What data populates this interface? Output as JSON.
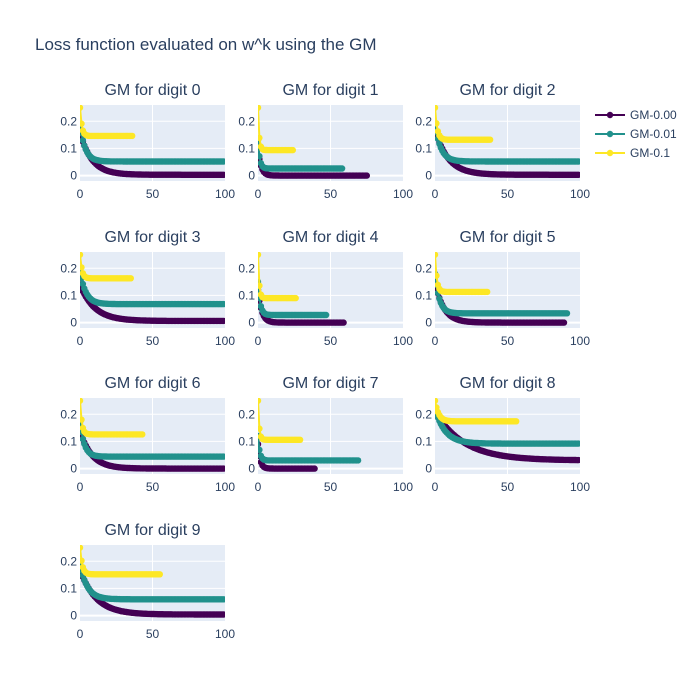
{
  "figure": {
    "title": "Loss function evaluated on w^k using the GM",
    "background": "#ffffff",
    "plot_background": "#e5ecf6",
    "grid_color": "#ffffff",
    "text_color": "#2a3f5f"
  },
  "chart_data": {
    "type": "line",
    "grid": true,
    "legend_position": "top-right",
    "series_styles": [
      {
        "name": "GM-0.00",
        "color": "#440154"
      },
      {
        "name": "GM-0.01",
        "color": "#21918c"
      },
      {
        "name": "GM-0.1",
        "color": "#fde725"
      }
    ],
    "panels": [
      {
        "title": "GM for digit 0",
        "xlim": [
          0,
          100
        ],
        "ylim": [
          -0.02,
          0.26
        ],
        "xticks": [
          0,
          50,
          100
        ],
        "xtick_labels": [
          "0",
          "50",
          "100"
        ],
        "yticks": [
          0,
          0.1,
          0.2
        ],
        "ytick_labels": [
          "0",
          "0.1",
          "0.2"
        ],
        "series": [
          {
            "name": "GM-0.00",
            "iterations": 100,
            "start": 0.16,
            "end": 0.003,
            "tau": 8
          },
          {
            "name": "GM-0.01",
            "iterations": 100,
            "start": 0.19,
            "end": 0.052,
            "tau": 3.5
          },
          {
            "name": "GM-0.1",
            "iterations": 37,
            "start": 0.25,
            "end": 0.146,
            "tau": 1.2
          }
        ]
      },
      {
        "title": "GM for digit 1",
        "xlim": [
          0,
          100
        ],
        "ylim": [
          -0.02,
          0.26
        ],
        "xticks": [
          0,
          50,
          100
        ],
        "xtick_labels": [
          "0",
          "50",
          "100"
        ],
        "yticks": [
          0,
          0.1,
          0.2
        ],
        "ytick_labels": [
          "0",
          "0.1",
          "0.2"
        ],
        "series": [
          {
            "name": "GM-0.00",
            "iterations": 76,
            "start": 0.1,
            "end": 0.0,
            "tau": 2
          },
          {
            "name": "GM-0.01",
            "iterations": 59,
            "start": 0.13,
            "end": 0.026,
            "tau": 1.2
          },
          {
            "name": "GM-0.1",
            "iterations": 25,
            "start": 0.25,
            "end": 0.094,
            "tau": 0.8
          }
        ]
      },
      {
        "title": "GM for digit 2",
        "xlim": [
          0,
          100
        ],
        "ylim": [
          -0.02,
          0.26
        ],
        "xticks": [
          0,
          50,
          100
        ],
        "xtick_labels": [
          "0",
          "50",
          "100"
        ],
        "yticks": [
          0,
          0.1,
          0.2
        ],
        "ytick_labels": [
          "0",
          "0.1",
          "0.2"
        ],
        "series": [
          {
            "name": "GM-0.00",
            "iterations": 100,
            "start": 0.17,
            "end": 0.003,
            "tau": 9
          },
          {
            "name": "GM-0.01",
            "iterations": 100,
            "start": 0.19,
            "end": 0.052,
            "tau": 4
          },
          {
            "name": "GM-0.1",
            "iterations": 39,
            "start": 0.25,
            "end": 0.132,
            "tau": 1.5
          }
        ]
      },
      {
        "title": "GM for digit 3",
        "xlim": [
          0,
          100
        ],
        "ylim": [
          -0.02,
          0.26
        ],
        "xticks": [
          0,
          50,
          100
        ],
        "xtick_labels": [
          "0",
          "50",
          "100"
        ],
        "yticks": [
          0,
          0.1,
          0.2
        ],
        "ytick_labels": [
          "0",
          "0.1",
          "0.2"
        ],
        "series": [
          {
            "name": "GM-0.00",
            "iterations": 100,
            "start": 0.14,
            "end": 0.006,
            "tau": 10
          },
          {
            "name": "GM-0.01",
            "iterations": 100,
            "start": 0.19,
            "end": 0.068,
            "tau": 4
          },
          {
            "name": "GM-0.1",
            "iterations": 36,
            "start": 0.25,
            "end": 0.163,
            "tau": 1.3
          }
        ]
      },
      {
        "title": "GM for digit 4",
        "xlim": [
          0,
          100
        ],
        "ylim": [
          -0.02,
          0.26
        ],
        "xticks": [
          0,
          50,
          100
        ],
        "xtick_labels": [
          "0",
          "50",
          "100"
        ],
        "yticks": [
          0,
          0.1,
          0.2
        ],
        "ytick_labels": [
          "0",
          "0.1",
          "0.2"
        ],
        "series": [
          {
            "name": "GM-0.00",
            "iterations": 60,
            "start": 0.12,
            "end": 0.0,
            "tau": 2.5
          },
          {
            "name": "GM-0.01",
            "iterations": 48,
            "start": 0.15,
            "end": 0.028,
            "tau": 1.5
          },
          {
            "name": "GM-0.1",
            "iterations": 27,
            "start": 0.25,
            "end": 0.09,
            "tau": 0.8
          }
        ]
      },
      {
        "title": "GM for digit 5",
        "xlim": [
          0,
          100
        ],
        "ylim": [
          -0.02,
          0.26
        ],
        "xticks": [
          0,
          50,
          100
        ],
        "xtick_labels": [
          "0",
          "50",
          "100"
        ],
        "yticks": [
          0,
          0.1,
          0.2
        ],
        "ytick_labels": [
          "0",
          "0.1",
          "0.2"
        ],
        "series": [
          {
            "name": "GM-0.00",
            "iterations": 90,
            "start": 0.15,
            "end": 0.0,
            "tau": 6
          },
          {
            "name": "GM-0.01",
            "iterations": 92,
            "start": 0.18,
            "end": 0.034,
            "tau": 3
          },
          {
            "name": "GM-0.1",
            "iterations": 37,
            "start": 0.25,
            "end": 0.113,
            "tau": 1.2
          }
        ]
      },
      {
        "title": "GM for digit 6",
        "xlim": [
          0,
          100
        ],
        "ylim": [
          -0.02,
          0.26
        ],
        "xticks": [
          0,
          50,
          100
        ],
        "xtick_labels": [
          "0",
          "50",
          "100"
        ],
        "yticks": [
          0,
          0.1,
          0.2
        ],
        "ytick_labels": [
          "0",
          "0.1",
          "0.2"
        ],
        "series": [
          {
            "name": "GM-0.00",
            "iterations": 100,
            "start": 0.14,
            "end": 0.0,
            "tau": 8
          },
          {
            "name": "GM-0.01",
            "iterations": 100,
            "start": 0.17,
            "end": 0.044,
            "tau": 3
          },
          {
            "name": "GM-0.1",
            "iterations": 44,
            "start": 0.25,
            "end": 0.126,
            "tau": 1.2
          }
        ]
      },
      {
        "title": "GM for digit 7",
        "xlim": [
          0,
          100
        ],
        "ylim": [
          -0.02,
          0.26
        ],
        "xticks": [
          0,
          50,
          100
        ],
        "xtick_labels": [
          "0",
          "50",
          "100"
        ],
        "yticks": [
          0,
          0.1,
          0.2
        ],
        "ytick_labels": [
          "0",
          "0.1",
          "0.2"
        ],
        "series": [
          {
            "name": "GM-0.00",
            "iterations": 40,
            "start": 0.09,
            "end": 0.0,
            "tau": 1.5
          },
          {
            "name": "GM-0.01",
            "iterations": 70,
            "start": 0.12,
            "end": 0.03,
            "tau": 1.2
          },
          {
            "name": "GM-0.1",
            "iterations": 30,
            "start": 0.25,
            "end": 0.106,
            "tau": 0.8
          }
        ]
      },
      {
        "title": "GM for digit 8",
        "xlim": [
          0,
          100
        ],
        "ylim": [
          -0.02,
          0.26
        ],
        "xticks": [
          0,
          50,
          100
        ],
        "xtick_labels": [
          "0",
          "50",
          "100"
        ],
        "yticks": [
          0,
          0.1,
          0.2
        ],
        "ytick_labels": [
          "0",
          "0.1",
          "0.2"
        ],
        "series": [
          {
            "name": "GM-0.00",
            "iterations": 100,
            "start": 0.21,
            "end": 0.03,
            "tau": 20
          },
          {
            "name": "GM-0.01",
            "iterations": 100,
            "start": 0.22,
            "end": 0.092,
            "tau": 7
          },
          {
            "name": "GM-0.1",
            "iterations": 57,
            "start": 0.25,
            "end": 0.174,
            "tau": 2.5
          }
        ]
      },
      {
        "title": "GM for digit 9",
        "xlim": [
          0,
          100
        ],
        "ylim": [
          -0.02,
          0.26
        ],
        "xticks": [
          0,
          50,
          100
        ],
        "xtick_labels": [
          "0",
          "50",
          "100"
        ],
        "yticks": [
          0,
          0.1,
          0.2
        ],
        "ytick_labels": [
          "0",
          "0.1",
          "0.2"
        ],
        "series": [
          {
            "name": "GM-0.00",
            "iterations": 100,
            "start": 0.17,
            "end": 0.004,
            "tau": 11
          },
          {
            "name": "GM-0.01",
            "iterations": 100,
            "start": 0.19,
            "end": 0.06,
            "tau": 5
          },
          {
            "name": "GM-0.1",
            "iterations": 56,
            "start": 0.25,
            "end": 0.152,
            "tau": 1.5
          }
        ]
      }
    ]
  }
}
